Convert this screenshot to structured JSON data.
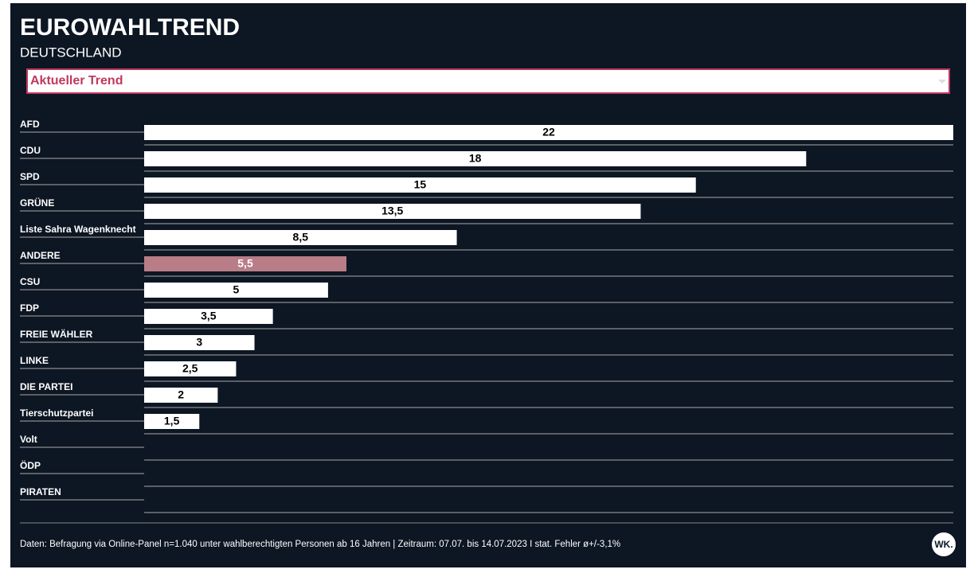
{
  "chart_data": {
    "type": "bar",
    "orientation": "horizontal",
    "title": "EUROWAHLTREND",
    "subtitle": "DEUTSCHLAND",
    "selector": "Aktueller Trend",
    "categories": [
      "AFD",
      "CDU",
      "SPD",
      "GRÜNE",
      "Liste Sahra Wagenknecht",
      "ANDERE",
      "CSU",
      "FDP",
      "FREIE WÄHLER",
      "LINKE",
      "DIE PARTEI",
      "Tierschutzpartei",
      "Volt",
      "ÖDP",
      "PIRATEN"
    ],
    "values": [
      22,
      18,
      15,
      13.5,
      8.5,
      5.5,
      5,
      3.5,
      3,
      2.5,
      2,
      1.5,
      0,
      0,
      0
    ],
    "value_labels": [
      "22",
      "18",
      "15",
      "13,5",
      "8,5",
      "5,5",
      "5",
      "3,5",
      "3",
      "2,5",
      "2",
      "1,5",
      null,
      null,
      null
    ],
    "colors": [
      "#ffffff",
      "#ffffff",
      "#ffffff",
      "#ffffff",
      "#ffffff",
      "#b87d86",
      "#ffffff",
      "#ffffff",
      "#ffffff",
      "#ffffff",
      "#ffffff",
      "#ffffff",
      "#ffffff",
      "#ffffff",
      "#ffffff"
    ],
    "footnote": "Daten: Befragung via Online-Panel n=1.040 unter wahlberechtigten Personen ab 16 Jahren | Zeitraum: 07.07. bis 14.07.2023 I stat. Fehler ø+/-3,1%",
    "logo": "WK."
  }
}
